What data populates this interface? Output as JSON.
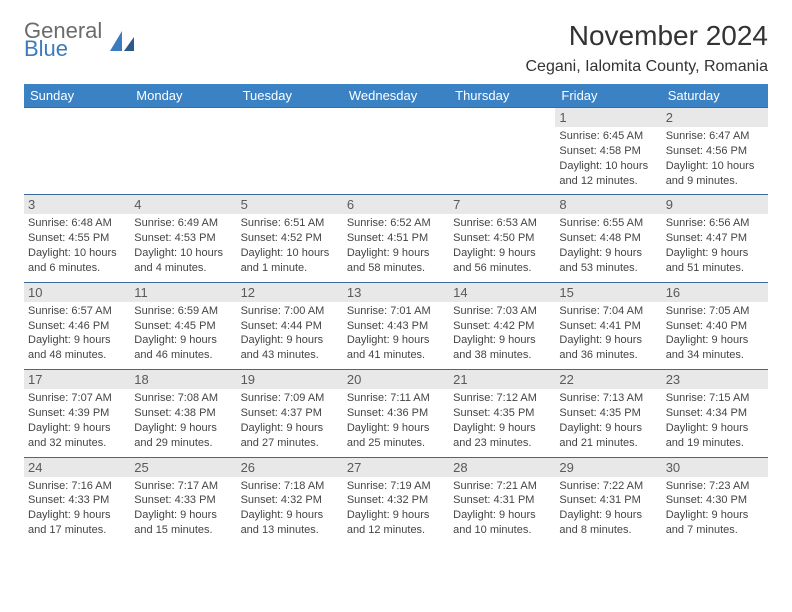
{
  "logo": {
    "general": "General",
    "blue": "Blue"
  },
  "title": "November 2024",
  "location": "Cegani, Ialomita County, Romania",
  "colors": {
    "header_bg": "#3b82c4",
    "header_text": "#ffffff",
    "row_border": "#3b6a9a",
    "daynum_bg": "#e8e8e8",
    "logo_blue": "#3b7bbf",
    "logo_gray": "#6b6b6b"
  },
  "fonts": {
    "month_title_pt": 21,
    "location_pt": 12,
    "day_header_pt": 10,
    "daynum_pt": 10,
    "body_pt": 8
  },
  "dayHeaders": [
    "Sunday",
    "Monday",
    "Tuesday",
    "Wednesday",
    "Thursday",
    "Friday",
    "Saturday"
  ],
  "weeks": [
    [
      {
        "num": "",
        "sunrise": "",
        "sunset": "",
        "daylight": ""
      },
      {
        "num": "",
        "sunrise": "",
        "sunset": "",
        "daylight": ""
      },
      {
        "num": "",
        "sunrise": "",
        "sunset": "",
        "daylight": ""
      },
      {
        "num": "",
        "sunrise": "",
        "sunset": "",
        "daylight": ""
      },
      {
        "num": "",
        "sunrise": "",
        "sunset": "",
        "daylight": ""
      },
      {
        "num": "1",
        "sunrise": "Sunrise: 6:45 AM",
        "sunset": "Sunset: 4:58 PM",
        "daylight": "Daylight: 10 hours and 12 minutes."
      },
      {
        "num": "2",
        "sunrise": "Sunrise: 6:47 AM",
        "sunset": "Sunset: 4:56 PM",
        "daylight": "Daylight: 10 hours and 9 minutes."
      }
    ],
    [
      {
        "num": "3",
        "sunrise": "Sunrise: 6:48 AM",
        "sunset": "Sunset: 4:55 PM",
        "daylight": "Daylight: 10 hours and 6 minutes."
      },
      {
        "num": "4",
        "sunrise": "Sunrise: 6:49 AM",
        "sunset": "Sunset: 4:53 PM",
        "daylight": "Daylight: 10 hours and 4 minutes."
      },
      {
        "num": "5",
        "sunrise": "Sunrise: 6:51 AM",
        "sunset": "Sunset: 4:52 PM",
        "daylight": "Daylight: 10 hours and 1 minute."
      },
      {
        "num": "6",
        "sunrise": "Sunrise: 6:52 AM",
        "sunset": "Sunset: 4:51 PM",
        "daylight": "Daylight: 9 hours and 58 minutes."
      },
      {
        "num": "7",
        "sunrise": "Sunrise: 6:53 AM",
        "sunset": "Sunset: 4:50 PM",
        "daylight": "Daylight: 9 hours and 56 minutes."
      },
      {
        "num": "8",
        "sunrise": "Sunrise: 6:55 AM",
        "sunset": "Sunset: 4:48 PM",
        "daylight": "Daylight: 9 hours and 53 minutes."
      },
      {
        "num": "9",
        "sunrise": "Sunrise: 6:56 AM",
        "sunset": "Sunset: 4:47 PM",
        "daylight": "Daylight: 9 hours and 51 minutes."
      }
    ],
    [
      {
        "num": "10",
        "sunrise": "Sunrise: 6:57 AM",
        "sunset": "Sunset: 4:46 PM",
        "daylight": "Daylight: 9 hours and 48 minutes."
      },
      {
        "num": "11",
        "sunrise": "Sunrise: 6:59 AM",
        "sunset": "Sunset: 4:45 PM",
        "daylight": "Daylight: 9 hours and 46 minutes."
      },
      {
        "num": "12",
        "sunrise": "Sunrise: 7:00 AM",
        "sunset": "Sunset: 4:44 PM",
        "daylight": "Daylight: 9 hours and 43 minutes."
      },
      {
        "num": "13",
        "sunrise": "Sunrise: 7:01 AM",
        "sunset": "Sunset: 4:43 PM",
        "daylight": "Daylight: 9 hours and 41 minutes."
      },
      {
        "num": "14",
        "sunrise": "Sunrise: 7:03 AM",
        "sunset": "Sunset: 4:42 PM",
        "daylight": "Daylight: 9 hours and 38 minutes."
      },
      {
        "num": "15",
        "sunrise": "Sunrise: 7:04 AM",
        "sunset": "Sunset: 4:41 PM",
        "daylight": "Daylight: 9 hours and 36 minutes."
      },
      {
        "num": "16",
        "sunrise": "Sunrise: 7:05 AM",
        "sunset": "Sunset: 4:40 PM",
        "daylight": "Daylight: 9 hours and 34 minutes."
      }
    ],
    [
      {
        "num": "17",
        "sunrise": "Sunrise: 7:07 AM",
        "sunset": "Sunset: 4:39 PM",
        "daylight": "Daylight: 9 hours and 32 minutes."
      },
      {
        "num": "18",
        "sunrise": "Sunrise: 7:08 AM",
        "sunset": "Sunset: 4:38 PM",
        "daylight": "Daylight: 9 hours and 29 minutes."
      },
      {
        "num": "19",
        "sunrise": "Sunrise: 7:09 AM",
        "sunset": "Sunset: 4:37 PM",
        "daylight": "Daylight: 9 hours and 27 minutes."
      },
      {
        "num": "20",
        "sunrise": "Sunrise: 7:11 AM",
        "sunset": "Sunset: 4:36 PM",
        "daylight": "Daylight: 9 hours and 25 minutes."
      },
      {
        "num": "21",
        "sunrise": "Sunrise: 7:12 AM",
        "sunset": "Sunset: 4:35 PM",
        "daylight": "Daylight: 9 hours and 23 minutes."
      },
      {
        "num": "22",
        "sunrise": "Sunrise: 7:13 AM",
        "sunset": "Sunset: 4:35 PM",
        "daylight": "Daylight: 9 hours and 21 minutes."
      },
      {
        "num": "23",
        "sunrise": "Sunrise: 7:15 AM",
        "sunset": "Sunset: 4:34 PM",
        "daylight": "Daylight: 9 hours and 19 minutes."
      }
    ],
    [
      {
        "num": "24",
        "sunrise": "Sunrise: 7:16 AM",
        "sunset": "Sunset: 4:33 PM",
        "daylight": "Daylight: 9 hours and 17 minutes."
      },
      {
        "num": "25",
        "sunrise": "Sunrise: 7:17 AM",
        "sunset": "Sunset: 4:33 PM",
        "daylight": "Daylight: 9 hours and 15 minutes."
      },
      {
        "num": "26",
        "sunrise": "Sunrise: 7:18 AM",
        "sunset": "Sunset: 4:32 PM",
        "daylight": "Daylight: 9 hours and 13 minutes."
      },
      {
        "num": "27",
        "sunrise": "Sunrise: 7:19 AM",
        "sunset": "Sunset: 4:32 PM",
        "daylight": "Daylight: 9 hours and 12 minutes."
      },
      {
        "num": "28",
        "sunrise": "Sunrise: 7:21 AM",
        "sunset": "Sunset: 4:31 PM",
        "daylight": "Daylight: 9 hours and 10 minutes."
      },
      {
        "num": "29",
        "sunrise": "Sunrise: 7:22 AM",
        "sunset": "Sunset: 4:31 PM",
        "daylight": "Daylight: 9 hours and 8 minutes."
      },
      {
        "num": "30",
        "sunrise": "Sunrise: 7:23 AM",
        "sunset": "Sunset: 4:30 PM",
        "daylight": "Daylight: 9 hours and 7 minutes."
      }
    ]
  ]
}
